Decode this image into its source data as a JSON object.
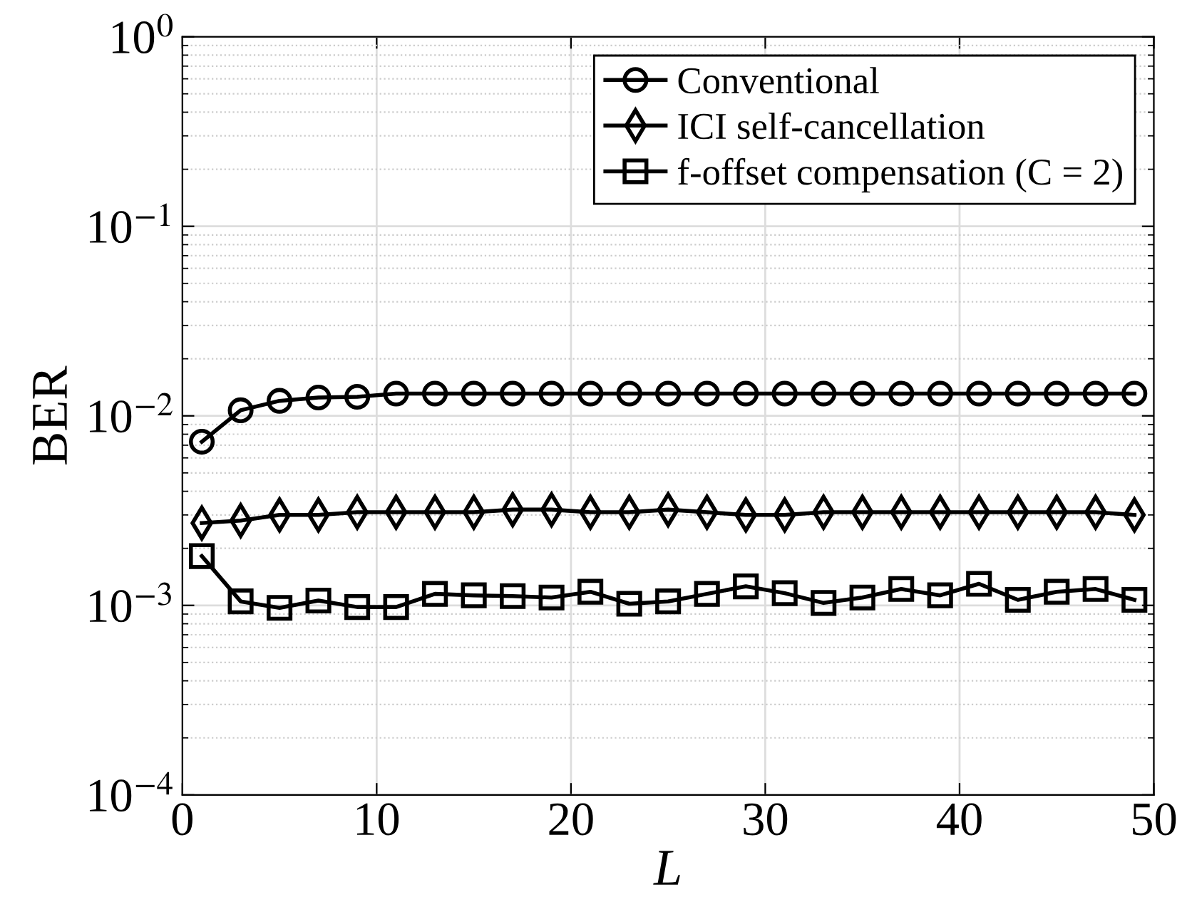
{
  "chart_data": {
    "type": "line",
    "xlabel": "L",
    "ylabel": "BER",
    "log": "y",
    "grid": true,
    "legend": "top right",
    "line_style": "solid",
    "x": [
      1,
      3,
      5,
      7,
      9,
      11,
      13,
      15,
      17,
      19,
      21,
      23,
      25,
      27,
      29,
      31,
      33,
      35,
      37,
      39,
      41,
      43,
      45,
      47,
      49
    ],
    "series": [
      {
        "name": "Conventional",
        "color": "#000000",
        "marker": "circle",
        "values": [
          0.0073,
          0.0107,
          0.012,
          0.0125,
          0.0126,
          0.0131,
          0.0131,
          0.0131,
          0.0131,
          0.0131,
          0.0131,
          0.0131,
          0.0131,
          0.0131,
          0.0131,
          0.0131,
          0.0131,
          0.0131,
          0.0131,
          0.0131,
          0.0131,
          0.0131,
          0.0131,
          0.0131,
          0.0131
        ]
      },
      {
        "name": "ICI self-cancellation",
        "color": "#000000",
        "marker": "diamond",
        "values": [
          0.00272,
          0.0028,
          0.003,
          0.003,
          0.0031,
          0.0031,
          0.0031,
          0.0031,
          0.0032,
          0.0032,
          0.0031,
          0.0031,
          0.0032,
          0.0031,
          0.003,
          0.003,
          0.0031,
          0.0031,
          0.0031,
          0.0031,
          0.0031,
          0.0031,
          0.0031,
          0.0031,
          0.003
        ]
      },
      {
        "name": "f-offset compensation (C = 2)",
        "color": "#000000",
        "marker": "square",
        "values": [
          0.00182,
          0.00105,
          0.00097,
          0.00106,
          0.00098,
          0.00098,
          0.00115,
          0.00113,
          0.00112,
          0.0011,
          0.00118,
          0.00102,
          0.00105,
          0.00115,
          0.00126,
          0.00116,
          0.00103,
          0.0011,
          0.00122,
          0.00113,
          0.0013,
          0.00107,
          0.00118,
          0.00122,
          0.00107
        ]
      }
    ],
    "xlim": [
      0,
      50
    ],
    "xticks": [
      0,
      10,
      20,
      30,
      40,
      50
    ],
    "ylim": [
      0.0001,
      1
    ],
    "yticks": [
      {
        "value": 0.0001,
        "label": "10$^{−4}$"
      },
      {
        "value": 0.001,
        "label": "10$^{−3}$"
      },
      {
        "value": 0.01,
        "label": "10$^{−2}$"
      },
      {
        "value": 0.1,
        "label": "10$^{−1}$"
      },
      {
        "value": 1,
        "label": "10$^{0}$"
      }
    ]
  }
}
